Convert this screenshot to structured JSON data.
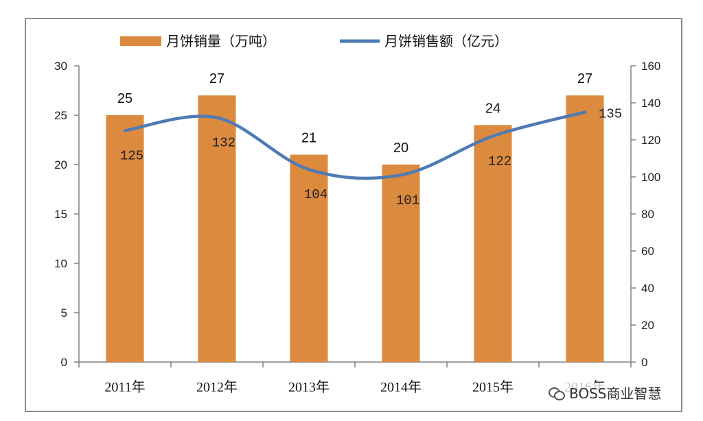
{
  "chart_data": {
    "type": "bar",
    "categories": [
      "2011年",
      "2012年",
      "2013年",
      "2014年",
      "2015年",
      "2016年"
    ],
    "series": [
      {
        "name": "月饼销量（万吨）",
        "type": "bar",
        "axis": "left",
        "values": [
          25,
          27,
          21,
          20,
          24,
          27
        ],
        "color": "#DC8A3E"
      },
      {
        "name": "月饼销售额（亿元）",
        "type": "line",
        "axis": "right",
        "values": [
          125,
          132,
          104,
          101,
          122,
          135
        ],
        "color": "#4F7BB3"
      }
    ],
    "ylim_left": [
      0,
      30
    ],
    "yticks_left": [
      "0",
      "5",
      "10",
      "15",
      "20",
      "25",
      "30"
    ],
    "ylim_right": [
      0,
      160
    ],
    "yticks_right": [
      "0",
      "20",
      "40",
      "60",
      "80",
      "100",
      "120",
      "140",
      "160"
    ],
    "legend_position": "top",
    "grid": false
  },
  "watermark": {
    "text": "BOSS商业智慧",
    "icon": "wechat-icon"
  }
}
